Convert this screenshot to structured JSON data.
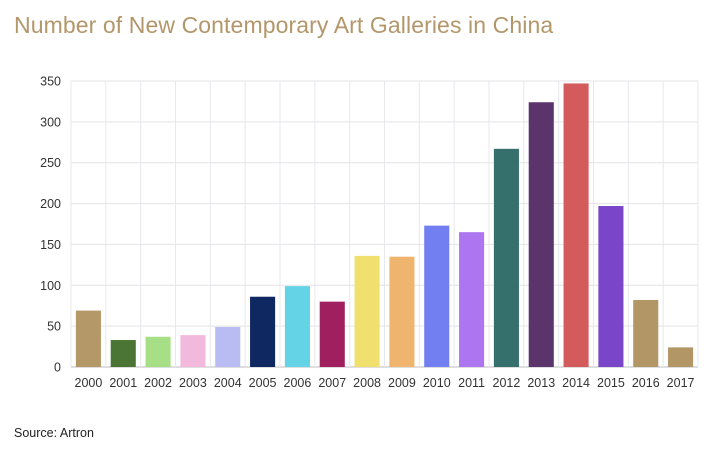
{
  "title": "Number of New Contemporary Art Galleries in China",
  "source": "Source: Artron",
  "chart_data": {
    "type": "bar",
    "title": "Number of New Contemporary Art Galleries in China",
    "xlabel": "",
    "ylabel": "",
    "ylim": [
      0,
      350
    ],
    "yticks": [
      "0",
      "50",
      "100",
      "150",
      "200",
      "250",
      "300",
      "350"
    ],
    "grid": true,
    "legend": "none",
    "categories": [
      "2000",
      "2001",
      "2002",
      "2003",
      "2004",
      "2005",
      "2006",
      "2007",
      "2008",
      "2009",
      "2010",
      "2011",
      "2012",
      "2013",
      "2014",
      "2015",
      "2016",
      "2017"
    ],
    "values": [
      69,
      33,
      37,
      39,
      49,
      86,
      99,
      80,
      136,
      135,
      173,
      165,
      267,
      324,
      347,
      197,
      82,
      24
    ],
    "colors": [
      "#b49867",
      "#4a7535",
      "#a6df86",
      "#f2b9dc",
      "#b9bcf2",
      "#102861",
      "#64d3e5",
      "#a01f5e",
      "#f1e06e",
      "#efb56f",
      "#717ff0",
      "#ad75ef",
      "#35706c",
      "#5b346c",
      "#d45b5b",
      "#7a45c9",
      "#b39666",
      "#b39666"
    ]
  }
}
